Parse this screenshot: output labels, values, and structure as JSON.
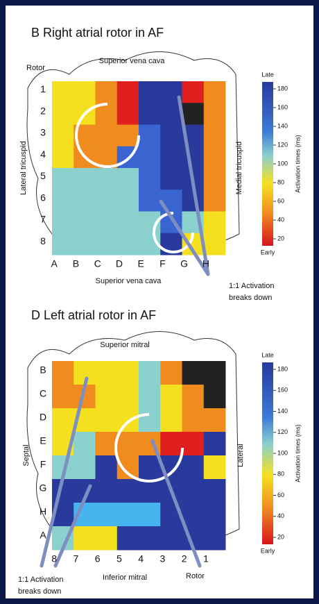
{
  "panels": [
    {
      "title": "B Right atrial rotor in AF",
      "top_label": "Superior vena cava",
      "bottom_label": "Superior vena cava",
      "left_label": "Lateral tricuspid",
      "right_label": "Medial tricuspid",
      "row_labels": [
        "1",
        "2",
        "3",
        "4",
        "5",
        "6",
        "7",
        "8"
      ],
      "col_labels": [
        "A",
        "B",
        "C",
        "D",
        "E",
        "F",
        "G",
        "H"
      ],
      "colorbar": {
        "top": "Late",
        "bottom": "Early",
        "title": "Activation times (ms)",
        "ticks": [
          180,
          160,
          140,
          120,
          100,
          80,
          60,
          40,
          20
        ]
      },
      "annotations": [
        {
          "lines": [
            "Rotor"
          ]
        },
        {
          "lines": [
            "1:1 Activation",
            "breaks down"
          ]
        }
      ]
    },
    {
      "title": "D Left atrial rotor in AF",
      "top_label": "Superior mitral",
      "bottom_label": "Inferior mitral",
      "left_label": "Septal",
      "right_label": "Lateral",
      "row_labels": [
        "B",
        "C",
        "D",
        "E",
        "F",
        "G",
        "H",
        "A"
      ],
      "col_labels": [
        "8",
        "7",
        "6",
        "5",
        "4",
        "3",
        "2",
        "1"
      ],
      "colorbar": {
        "top": "Late",
        "bottom": "Early",
        "title": "Activation times (ms)",
        "ticks": [
          180,
          160,
          140,
          120,
          100,
          80,
          60,
          40,
          20
        ]
      },
      "annotations": [
        {
          "lines": [
            "1:1 Activation",
            "breaks down"
          ]
        },
        {
          "lines": [
            "Rotor"
          ]
        }
      ]
    }
  ]
}
